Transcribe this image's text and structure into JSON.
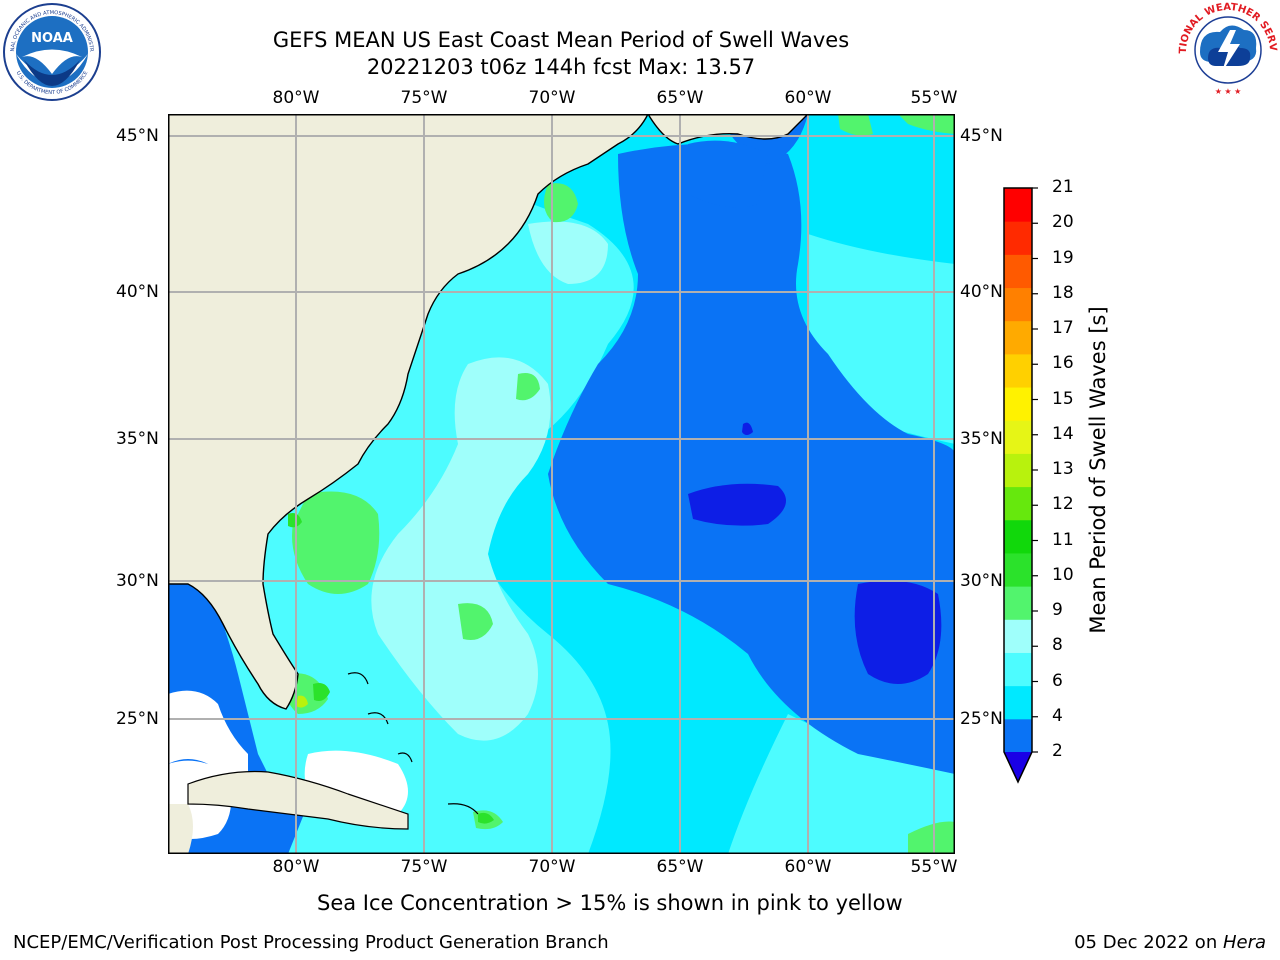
{
  "header": {
    "title_line1": "GEFS MEAN US East Coast Mean Period of Swell Waves",
    "title_line2": "20221203 t06z 144h fcst   Max: 13.57"
  },
  "logos": {
    "left": "noaa-logo",
    "right": "nws-logo",
    "noaa_text": "NOAA",
    "noaa_ring_top": "NATIONAL OCEANIC AND ATMOSPHERIC ADMINISTRATION",
    "noaa_ring_bottom": "U.S. DEPARTMENT OF COMMERCE",
    "nws_ring_text": "NATIONAL WEATHER SERVICE"
  },
  "map": {
    "lon_labels": [
      "80°W",
      "75°W",
      "70°W",
      "65°W",
      "60°W",
      "55°W"
    ],
    "lat_labels": [
      "45°N",
      "40°N",
      "35°N",
      "30°N",
      "25°N"
    ],
    "grid": true,
    "colors": {
      "land": "#efeedc",
      "no_data": "#ffffff",
      "grid": "#b0b0b0",
      "coast": "#000000"
    }
  },
  "colorbar": {
    "label": "Mean Period of Swell Waves [s]",
    "ticks": [
      "21",
      "20",
      "19",
      "18",
      "17",
      "16",
      "15",
      "14",
      "13",
      "12",
      "11",
      "10",
      "9",
      "8",
      "6",
      "4",
      "2"
    ],
    "levels": [
      2,
      4,
      6,
      8,
      9,
      10,
      11,
      12,
      13,
      14,
      15,
      16,
      17,
      18,
      19,
      20,
      21
    ],
    "colors": [
      "#0d1ee6",
      "#0a73f5",
      "#00e9ff",
      "#4dfcff",
      "#9ffffb",
      "#52f46d",
      "#2be22b",
      "#11d80b",
      "#66e80d",
      "#b8f20d",
      "#e6f516",
      "#fff200",
      "#ffd000",
      "#ffaa00",
      "#ff8000",
      "#ff5a00",
      "#ff2a00",
      "#ff0000"
    ],
    "under_color": "#1a00e6",
    "extend": "min"
  },
  "caption": "Sea Ice Concentration > 15% is shown in pink to yellow",
  "footer": {
    "left": "NCEP/EMC/Verification Post Processing Product Generation Branch",
    "right_date": "05 Dec 2022 on ",
    "right_host": "Hera"
  }
}
